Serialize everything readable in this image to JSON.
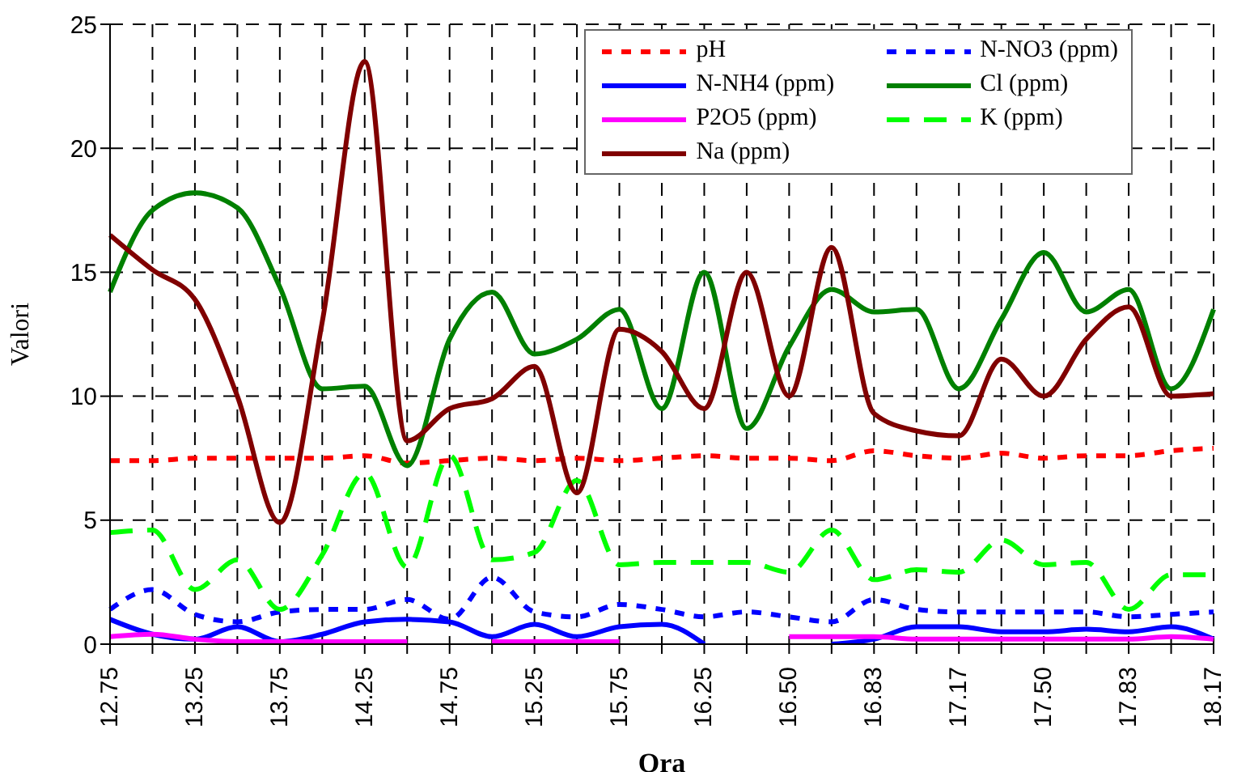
{
  "chart_data": {
    "type": "line",
    "xlabel": "Ora",
    "ylabel": "Valori",
    "categories": [
      "12.75",
      null,
      "13.25",
      null,
      "13.75",
      null,
      "14.25",
      null,
      "14.75",
      null,
      "15.25",
      null,
      "15.75",
      null,
      "16.25",
      null,
      "16.50",
      null,
      "16.83",
      null,
      "17.17",
      null,
      "17.50",
      null,
      "17.83",
      null,
      "18.17"
    ],
    "ylim": [
      0,
      25
    ],
    "yticks": [
      0,
      5,
      10,
      15,
      20,
      25
    ],
    "grid": true,
    "legend": "top right",
    "series": [
      {
        "name": "pH",
        "color": "#ff0000",
        "line_style": "dotted",
        "values": [
          7.4,
          7.4,
          7.5,
          7.5,
          7.5,
          7.5,
          7.6,
          7.3,
          7.4,
          7.5,
          7.4,
          7.5,
          7.4,
          7.5,
          7.6,
          7.5,
          7.5,
          7.4,
          7.8,
          7.6,
          7.5,
          7.7,
          7.5,
          7.6,
          7.6,
          7.8,
          7.9
        ]
      },
      {
        "name": "N-NO3 (ppm)",
        "color": "#0000ff",
        "line_style": "dotted",
        "values": [
          1.4,
          2.2,
          1.2,
          0.9,
          1.3,
          1.4,
          1.4,
          1.8,
          1.0,
          2.7,
          1.3,
          1.1,
          1.6,
          1.4,
          1.1,
          1.3,
          1.1,
          0.9,
          1.8,
          1.4,
          1.3,
          1.3,
          1.3,
          1.3,
          1.1,
          1.2,
          1.3
        ]
      },
      {
        "name": "N-NH4 (ppm)",
        "color": "#0000ff",
        "line_style": "solid",
        "values": [
          1.0,
          0.4,
          0.2,
          0.7,
          0.1,
          0.4,
          0.9,
          1.0,
          0.9,
          0.3,
          0.8,
          0.3,
          0.7,
          0.8,
          0.0,
          null,
          null,
          0.0,
          0.2,
          0.7,
          0.7,
          0.5,
          0.5,
          0.6,
          0.5,
          0.7,
          0.2
        ]
      },
      {
        "name": "Cl (ppm)",
        "color": "#008000",
        "line_style": "solid",
        "values": [
          14.2,
          17.5,
          18.2,
          17.6,
          14.4,
          10.3,
          10.4,
          7.2,
          12.3,
          14.2,
          11.7,
          12.3,
          13.5,
          9.5,
          15.0,
          8.7,
          12.0,
          14.3,
          13.4,
          13.5,
          10.3,
          13.1,
          15.8,
          13.4,
          14.3,
          10.3,
          13.5
        ]
      },
      {
        "name": "P2O5 (ppm)",
        "color": "#ff00ff",
        "line_style": "solid",
        "values": [
          0.3,
          0.4,
          0.2,
          0.1,
          0.1,
          0.1,
          0.1,
          0.1,
          null,
          0.1,
          0.1,
          0.1,
          0.1,
          null,
          null,
          null,
          0.3,
          0.3,
          0.3,
          0.2,
          0.2,
          0.2,
          0.2,
          0.2,
          0.2,
          0.3,
          0.2
        ]
      },
      {
        "name": "K (ppm)",
        "color": "#00ff00",
        "line_style": "dashed",
        "values": [
          4.5,
          4.6,
          2.2,
          3.4,
          1.4,
          3.6,
          6.9,
          3.1,
          7.6,
          3.4,
          3.7,
          6.6,
          3.2,
          3.3,
          3.3,
          3.3,
          2.9,
          4.6,
          2.6,
          3.0,
          2.9,
          4.2,
          3.2,
          3.3,
          1.4,
          2.8,
          2.8
        ]
      },
      {
        "name": "Na (ppm)",
        "color": "#800000",
        "line_style": "solid",
        "values": [
          16.5,
          15.1,
          13.9,
          10.0,
          4.9,
          13.0,
          23.5,
          8.2,
          9.5,
          9.9,
          11.2,
          6.1,
          12.7,
          11.8,
          9.5,
          15.0,
          10.0,
          16.0,
          9.3,
          8.6,
          8.4,
          11.5,
          10.0,
          12.3,
          13.6,
          10.0,
          10.1
        ]
      }
    ]
  }
}
